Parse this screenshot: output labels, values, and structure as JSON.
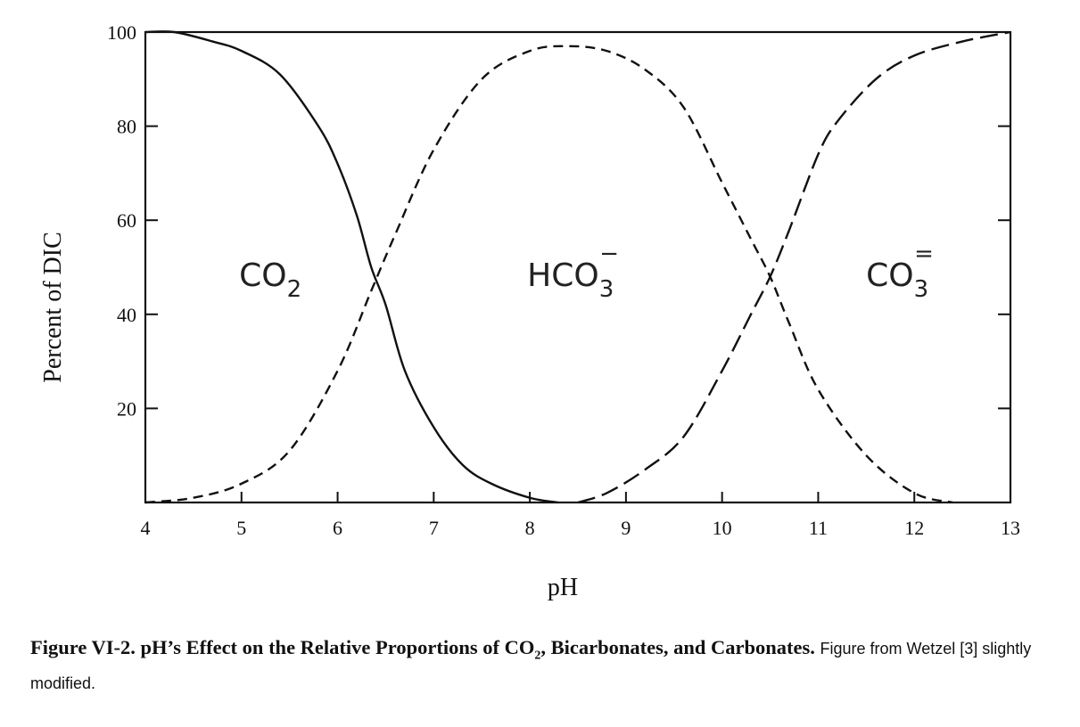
{
  "chart_data": {
    "type": "line",
    "xlabel": "pH",
    "ylabel": "Percent of DIC",
    "xlim": [
      4,
      13
    ],
    "ylim": [
      0,
      100
    ],
    "x_ticks": [
      "4",
      "5",
      "6",
      "7",
      "8",
      "9",
      "10",
      "11",
      "12",
      "13"
    ],
    "y_ticks": [
      "20",
      "40",
      "60",
      "80",
      "100"
    ],
    "grid": false,
    "series": [
      {
        "label_main": "CO",
        "label_sub": "2",
        "label_sup": "",
        "label_pos": [
          5.3,
          46
        ],
        "style": "solid",
        "x": [
          4.0,
          4.3,
          4.7,
          5.0,
          5.4,
          5.8,
          6.0,
          6.2,
          6.35,
          6.5,
          6.7,
          7.0,
          7.3,
          7.6,
          8.0,
          8.3
        ],
        "y": [
          100,
          100,
          98,
          96,
          91,
          80,
          72,
          61,
          50,
          42,
          28,
          16,
          8,
          4,
          1,
          0
        ]
      },
      {
        "label_main": "HCO",
        "label_sub": "3",
        "label_sup": "−",
        "label_pos": [
          8.45,
          46
        ],
        "style": "dashed",
        "x": [
          4.0,
          4.5,
          5.0,
          5.5,
          6.0,
          6.35,
          6.6,
          7.0,
          7.5,
          8.0,
          8.4,
          8.8,
          9.2,
          9.6,
          10.0,
          10.3,
          10.5,
          10.7,
          11.0,
          11.5,
          12.0,
          12.4
        ],
        "y": [
          0,
          1,
          4,
          11,
          28,
          45,
          57,
          75,
          90,
          96,
          97,
          96,
          92,
          84,
          68,
          56,
          48,
          38,
          24,
          10,
          2,
          0
        ]
      },
      {
        "label_main": "CO",
        "label_sub": "3",
        "label_sup": "=",
        "label_pos": [
          11.85,
          46
        ],
        "style": "longdash",
        "x": [
          8.5,
          8.8,
          9.2,
          9.6,
          10.0,
          10.3,
          10.5,
          10.7,
          11.0,
          11.2,
          11.6,
          12.0,
          12.5,
          13.0
        ],
        "y": [
          0,
          2,
          7,
          14,
          28,
          40,
          48,
          58,
          74,
          81,
          90,
          95,
          98,
          100
        ]
      }
    ]
  },
  "caption": {
    "bold_part1": "Figure VI-2.  pH’s Effect on the Relative Proportions of CO",
    "bold_sub": "2",
    "bold_part2": ", Bicarbonates, and Carbonates.",
    "normal_part": "Figure from Wetzel [3] slightly modified."
  }
}
